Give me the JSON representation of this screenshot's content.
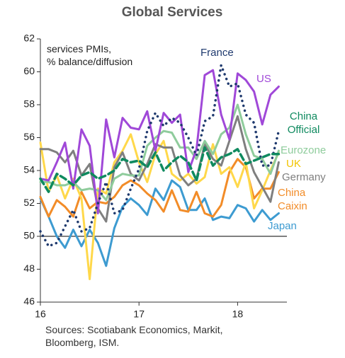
{
  "chart_data": {
    "type": "line",
    "title": "Global Services",
    "annotation": "services PMIs,\n% balance/diffusion",
    "source": "Sources: Scotiabank Economics, Markit, Bloomberg, ISM.",
    "x": [
      0,
      1,
      2,
      3,
      4,
      5,
      6,
      7,
      8,
      9,
      10,
      11,
      12,
      13,
      14,
      15,
      16,
      17,
      18,
      19,
      20,
      21,
      22,
      23,
      24,
      25,
      26,
      27,
      28,
      29
    ],
    "xlim": [
      0,
      30
    ],
    "xticks": [
      {
        "value": 0,
        "label": "16"
      },
      {
        "value": 12,
        "label": "17"
      },
      {
        "value": 24,
        "label": "18"
      }
    ],
    "ylim": [
      46,
      62
    ],
    "yticks": [
      46,
      48,
      50,
      52,
      54,
      56,
      58,
      60,
      62
    ],
    "reference_line": 50,
    "grid": false,
    "series": [
      {
        "name": "Japan",
        "color": "#3d9bd1",
        "style": "solid",
        "values": [
          52.3,
          51.2,
          50.0,
          49.3,
          50.4,
          49.4,
          50.4,
          49.6,
          48.2,
          50.5,
          51.8,
          52.3,
          51.9,
          51.3,
          52.9,
          52.2,
          53.4,
          53.0,
          51.6,
          51.6,
          52.3,
          51.0,
          51.2,
          51.1,
          51.9,
          51.7,
          50.9,
          51.6,
          51.0,
          51.4
        ]
      },
      {
        "name": "China Caixin",
        "color": "#f28c28",
        "style": "solid",
        "values": [
          52.4,
          51.2,
          52.2,
          51.8,
          51.2,
          52.7,
          51.7,
          52.1,
          52.0,
          52.4,
          53.1,
          53.4,
          53.1,
          52.6,
          52.2,
          51.5,
          52.8,
          51.6,
          51.5,
          52.7,
          51.4,
          51.2,
          51.9,
          53.9,
          54.7,
          54.2,
          52.3,
          52.9,
          52.9,
          53.9
        ]
      },
      {
        "name": "UK",
        "color": "#ffd84a",
        "style": "solid",
        "values": [
          55.7,
          52.7,
          53.7,
          52.3,
          53.5,
          52.3,
          47.4,
          52.9,
          52.6,
          54.5,
          55.2,
          56.2,
          54.5,
          53.3,
          55.0,
          55.8,
          53.8,
          53.4,
          53.8,
          53.2,
          53.6,
          55.6,
          53.8,
          54.2,
          53.0,
          54.5,
          51.7,
          52.8,
          54.0,
          55.1
        ]
      },
      {
        "name": "Germany",
        "color": "#7f7f7f",
        "style": "solid",
        "values": [
          55.3,
          55.3,
          55.1,
          54.5,
          55.2,
          53.7,
          54.4,
          51.7,
          50.9,
          54.2,
          55.1,
          53.8,
          53.4,
          54.4,
          55.6,
          55.4,
          55.4,
          53.7,
          53.1,
          53.5,
          55.6,
          54.7,
          54.3,
          55.8,
          57.3,
          55.3,
          53.9,
          53.0,
          52.1,
          54.5
        ]
      },
      {
        "name": "Eurozone",
        "color": "#8fcc9c",
        "style": "solid",
        "values": [
          53.3,
          53.3,
          53.1,
          53.1,
          53.3,
          52.8,
          52.9,
          52.8,
          52.2,
          53.5,
          53.8,
          53.7,
          53.7,
          55.5,
          56.0,
          56.4,
          56.3,
          55.4,
          55.4,
          54.7,
          55.8,
          55.0,
          56.2,
          56.6,
          58.0,
          56.2,
          54.9,
          54.7,
          53.8,
          55.2
        ]
      },
      {
        "name": "US",
        "color": "#a048d8",
        "style": "solid",
        "values": [
          53.5,
          53.4,
          54.5,
          55.7,
          52.9,
          56.5,
          55.5,
          51.4,
          57.1,
          54.8,
          57.2,
          56.6,
          56.5,
          57.6,
          55.2,
          57.5,
          56.9,
          57.4,
          53.9,
          55.3,
          59.8,
          60.1,
          57.4,
          55.9,
          59.9,
          59.5,
          58.8,
          56.8,
          58.6,
          59.1
        ]
      },
      {
        "name": "France",
        "color": "#1f3a6e",
        "style": "dotted",
        "values": [
          50.3,
          49.4,
          49.6,
          50.6,
          51.6,
          50.3,
          50.5,
          52.0,
          53.3,
          51.4,
          51.6,
          52.9,
          54.1,
          56.4,
          57.5,
          56.7,
          57.2,
          56.9,
          56.0,
          54.9,
          57.0,
          57.3,
          60.4,
          59.1,
          59.3,
          57.4,
          56.9,
          54.3,
          54.3,
          56.4
        ]
      },
      {
        "name": "China Official",
        "color": "#0f8a5f",
        "style": "dashed",
        "values": [
          53.5,
          52.7,
          53.8,
          53.5,
          53.1,
          53.7,
          53.9,
          53.5,
          53.7,
          54.0,
          54.7,
          54.5,
          54.6,
          54.2,
          55.1,
          54.0,
          54.5,
          54.9,
          54.5,
          53.4,
          55.4,
          54.3,
          54.8,
          55.0,
          55.3,
          54.4,
          54.6,
          54.8,
          55.0,
          55.0
        ]
      }
    ]
  }
}
